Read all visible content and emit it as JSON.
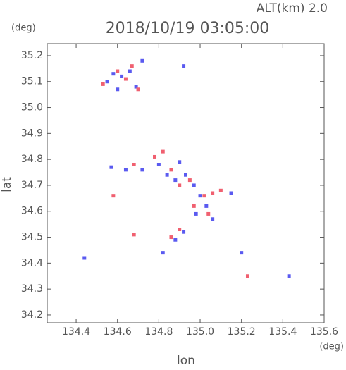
{
  "chart_data": {
    "type": "scatter",
    "title": "2018/10/19 03:05:00",
    "annotation": "ALT(km) 2.0",
    "y_unit": "(deg)",
    "x_unit": "(deg)",
    "x_label": "lon",
    "y_label": "lat",
    "xlim": [
      134.26,
      135.6
    ],
    "ylim": [
      34.17,
      35.246
    ],
    "xticks": [
      134.4,
      134.6,
      134.8,
      {
        "value": 135,
        "label": "135.0"
      },
      135.2,
      135.4,
      135.6
    ],
    "yticks": [
      34.2,
      34.3,
      34.4,
      34.5,
      34.6,
      34.7,
      34.8,
      34.9,
      {
        "value": 35,
        "label": "35.0"
      },
      35.1,
      35.2
    ],
    "series": [
      {
        "color": "#5a5af0",
        "x": [
          134.55,
          134.58,
          134.62,
          134.66,
          134.69,
          134.72,
          134.6,
          134.57,
          134.64,
          134.72,
          134.8,
          134.84,
          134.88,
          134.93,
          134.97,
          135.0,
          135.03,
          134.98,
          135.06,
          134.92,
          134.88,
          134.82,
          135.15,
          135.2,
          135.43,
          134.44,
          134.92,
          134.9
        ],
        "values": [
          35.1,
          35.13,
          35.12,
          35.14,
          35.08,
          35.18,
          35.07,
          34.77,
          34.76,
          34.76,
          34.78,
          34.74,
          34.72,
          34.74,
          34.7,
          34.66,
          34.62,
          34.59,
          34.57,
          34.52,
          34.49,
          34.44,
          34.67,
          34.44,
          34.35,
          34.42,
          35.16,
          34.79
        ]
      },
      {
        "color": "#f06070",
        "x": [
          134.53,
          134.6,
          134.64,
          134.7,
          134.67,
          134.68,
          134.78,
          134.82,
          134.86,
          134.9,
          134.95,
          135.02,
          135.06,
          135.04,
          134.97,
          134.86,
          134.9,
          135.23,
          134.58,
          134.68,
          135.1
        ],
        "values": [
          35.09,
          35.14,
          35.11,
          35.07,
          35.16,
          34.78,
          34.81,
          34.83,
          34.76,
          34.7,
          34.72,
          34.66,
          34.67,
          34.59,
          34.62,
          34.5,
          34.53,
          34.35,
          34.66,
          34.51,
          34.68
        ]
      }
    ]
  }
}
